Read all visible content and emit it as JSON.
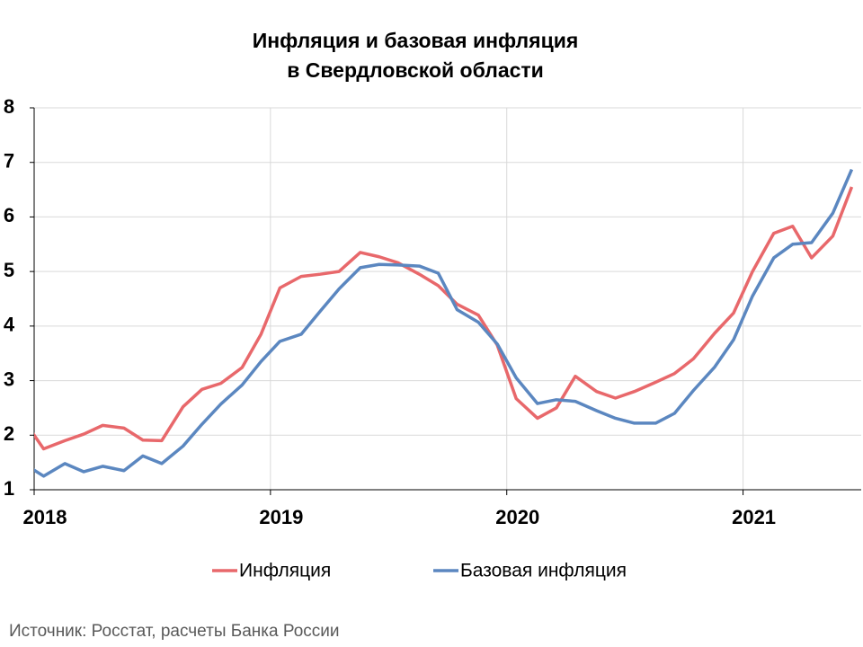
{
  "chart_data": {
    "type": "line",
    "title": [
      "Инфляция и базовая инфляция",
      "в  Свердловской области"
    ],
    "source": "Источник: Росстат, расчеты Банка России",
    "x": [
      2017.96,
      2018.04,
      2018.13,
      2018.21,
      2018.29,
      2018.38,
      2018.46,
      2018.54,
      2018.63,
      2018.71,
      2018.79,
      2018.88,
      2018.96,
      2019.04,
      2019.13,
      2019.21,
      2019.29,
      2019.38,
      2019.46,
      2019.54,
      2019.63,
      2019.71,
      2019.79,
      2019.88,
      2019.96,
      2020.04,
      2020.13,
      2020.21,
      2020.29,
      2020.38,
      2020.46,
      2020.54,
      2020.63,
      2020.71,
      2020.79,
      2020.88,
      2020.96,
      2021.04,
      2021.13,
      2021.21,
      2021.29,
      2021.38,
      2021.46
    ],
    "series": [
      {
        "name": "Инфляция",
        "color": "#e8686b",
        "values": [
          2.25,
          1.75,
          1.9,
          2.02,
          2.18,
          2.13,
          1.91,
          1.9,
          2.52,
          2.84,
          2.95,
          3.24,
          3.85,
          4.7,
          4.91,
          4.95,
          5.0,
          5.35,
          5.27,
          5.16,
          4.95,
          4.74,
          4.4,
          4.2,
          3.65,
          2.67,
          2.31,
          2.5,
          3.08,
          2.8,
          2.68,
          2.8,
          2.97,
          3.13,
          3.4,
          3.87,
          4.24,
          5.0,
          5.7,
          5.83,
          5.25,
          5.65,
          6.55
        ]
      },
      {
        "name": "Базовая инфляция",
        "color": "#5b87c0",
        "values": [
          1.47,
          1.25,
          1.48,
          1.33,
          1.43,
          1.35,
          1.62,
          1.48,
          1.8,
          2.2,
          2.57,
          2.92,
          3.35,
          3.72,
          3.85,
          4.27,
          4.68,
          5.07,
          5.13,
          5.12,
          5.1,
          4.97,
          4.3,
          4.07,
          3.67,
          3.05,
          2.58,
          2.65,
          2.62,
          2.45,
          2.31,
          2.22,
          2.22,
          2.4,
          2.82,
          3.25,
          3.75,
          4.55,
          5.25,
          5.5,
          5.53,
          6.07,
          6.87
        ]
      }
    ],
    "xlim": [
      2018,
      2021.5
    ],
    "xticks": [
      2018,
      2019,
      2020,
      2021
    ],
    "ylim": [
      1,
      8
    ],
    "yticks": [
      1,
      2,
      3,
      4,
      5,
      6,
      7,
      8
    ],
    "grid": true
  }
}
